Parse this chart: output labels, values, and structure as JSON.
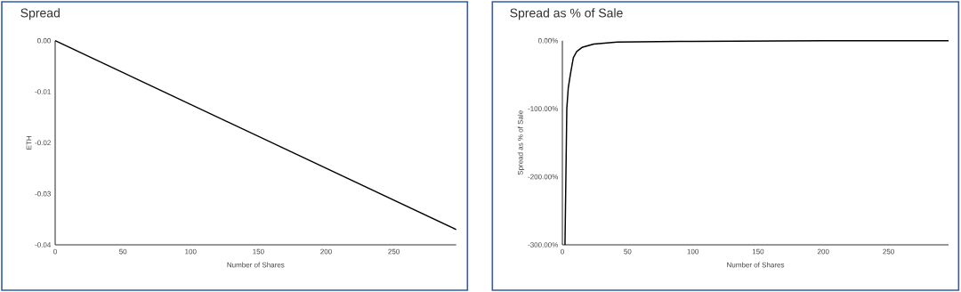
{
  "chart_data": [
    {
      "type": "line",
      "title": "Spread",
      "xlabel": "Number of Shares",
      "ylabel": "ETH",
      "x": [
        0,
        296
      ],
      "series": [
        {
          "color": "#000000",
          "values": [
            0,
            -0.037
          ]
        }
      ],
      "xlim": [
        0,
        296
      ],
      "ylim": [
        -0.04,
        0
      ],
      "xticks": [
        0,
        50,
        100,
        150,
        200,
        250
      ],
      "yticks": [
        {
          "value": 0,
          "label": "0.00"
        },
        {
          "value": -0.01,
          "label": "-0.01"
        },
        {
          "value": -0.02,
          "label": "-0.02"
        },
        {
          "value": -0.03,
          "label": "-0.03"
        },
        {
          "value": -0.04,
          "label": "-0.04"
        }
      ],
      "tick_labels": true
    },
    {
      "type": "line",
      "title": "Spread as % of Sale",
      "xlabel": "Number of Shares",
      "ylabel": "Spread as % of Sale",
      "x": [
        2,
        2.7,
        3.4,
        4.5,
        6.1,
        8.4,
        11,
        15,
        24,
        42,
        100,
        200,
        296
      ],
      "series": [
        {
          "color": "#000000",
          "values": [
            -300,
            -200,
            -100,
            -70,
            -50,
            -25,
            -16,
            -10,
            -5,
            -2,
            -1,
            0,
            0
          ]
        }
      ],
      "xlim": [
        0,
        296
      ],
      "ylim": [
        -300,
        0
      ],
      "xticks": [
        0,
        50,
        100,
        150,
        200,
        250
      ],
      "yticks": [
        {
          "value": 0,
          "label": "0.00%"
        },
        {
          "value": -100,
          "label": "-100.00%"
        },
        {
          "value": -200,
          "label": "-200.00%"
        },
        {
          "value": -300,
          "label": "-300.00%"
        }
      ],
      "tick_labels": true
    }
  ]
}
